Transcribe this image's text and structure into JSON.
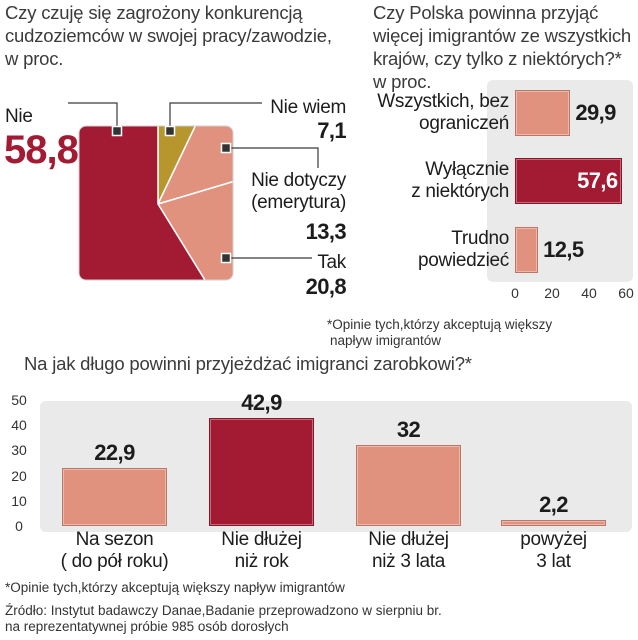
{
  "colors": {
    "dark_red": "#a31b33",
    "salmon": "#e1927e",
    "gold": "#b8962e",
    "panel": "#eaeaea",
    "text": "#1c1c1c"
  },
  "chart_data": [
    {
      "type": "pie",
      "title_lines": [
        "Czy czuję się zagrożony konkurencją",
        "cudzoziemców w swojej pracy/zawodzie,",
        "w proc."
      ],
      "slices": [
        {
          "label_lines": [
            "Nie wiem"
          ],
          "value": 7.1,
          "value_label": "7,1",
          "color": "#b8962e"
        },
        {
          "label_lines": [
            "Nie dotyczy",
            "(emerytura)"
          ],
          "value": 13.3,
          "value_label": "13,3",
          "color": "#e1927e"
        },
        {
          "label_lines": [
            "Tak"
          ],
          "value": 20.8,
          "value_label": "20,8",
          "color": "#e1927e"
        },
        {
          "label_lines": [
            "Nie"
          ],
          "value": 58.8,
          "value_label": "58,8",
          "color": "#a31b33"
        }
      ]
    },
    {
      "type": "bar",
      "orientation": "horizontal",
      "title_lines": [
        "Czy Polska powinna przyjąć",
        "więcej imigrantów ze wszystkich",
        "krajów, czy tylko z niektórych?*",
        "w proc."
      ],
      "categories": [
        [
          "Wszystkich, bez",
          "ograniczeń"
        ],
        [
          "Wyłącznie",
          "z niektórych"
        ],
        [
          "Trudno",
          "powiedzieć"
        ]
      ],
      "values": [
        29.9,
        57.6,
        12.5
      ],
      "value_labels": [
        "29,9",
        "57,6",
        "12,5"
      ],
      "colors": [
        "#e1927e",
        "#a31b33",
        "#e1927e"
      ],
      "xlim": [
        0,
        60
      ],
      "xticks": [
        0,
        20,
        40,
        60
      ],
      "grid": false,
      "footnote_lines": [
        "*Opinie tych,którzy akceptują większy",
        "napływ imigrantów"
      ]
    },
    {
      "type": "bar",
      "orientation": "vertical",
      "title": "Na jak długo powinni przyjeżdżać imigranci zarobkowi?*",
      "categories": [
        [
          "Na sezon",
          "( do pół roku)"
        ],
        [
          "Nie dłużej",
          "niż rok"
        ],
        [
          "Nie dłużej",
          "niż 3 lata"
        ],
        [
          "powyżej",
          "3 lat"
        ]
      ],
      "values": [
        22.9,
        42.9,
        32,
        2.2
      ],
      "value_labels": [
        "22,9",
        "42,9",
        "32",
        "2,2"
      ],
      "colors": [
        "#e1927e",
        "#a31b33",
        "#e1927e",
        "#e1927e"
      ],
      "ylim": [
        0,
        50
      ],
      "yticks": [
        0,
        10,
        20,
        30,
        40,
        50
      ],
      "grid": false,
      "footnote": "*Opinie tych,którzy akceptują większy napływ imigrantów"
    }
  ],
  "source_lines": [
    "Źródło: Instytut badawczy Danae,Badanie przeprowadzono w sierpniu br.",
    "na reprezentatywnej próbie 985 osób dorosłych"
  ]
}
